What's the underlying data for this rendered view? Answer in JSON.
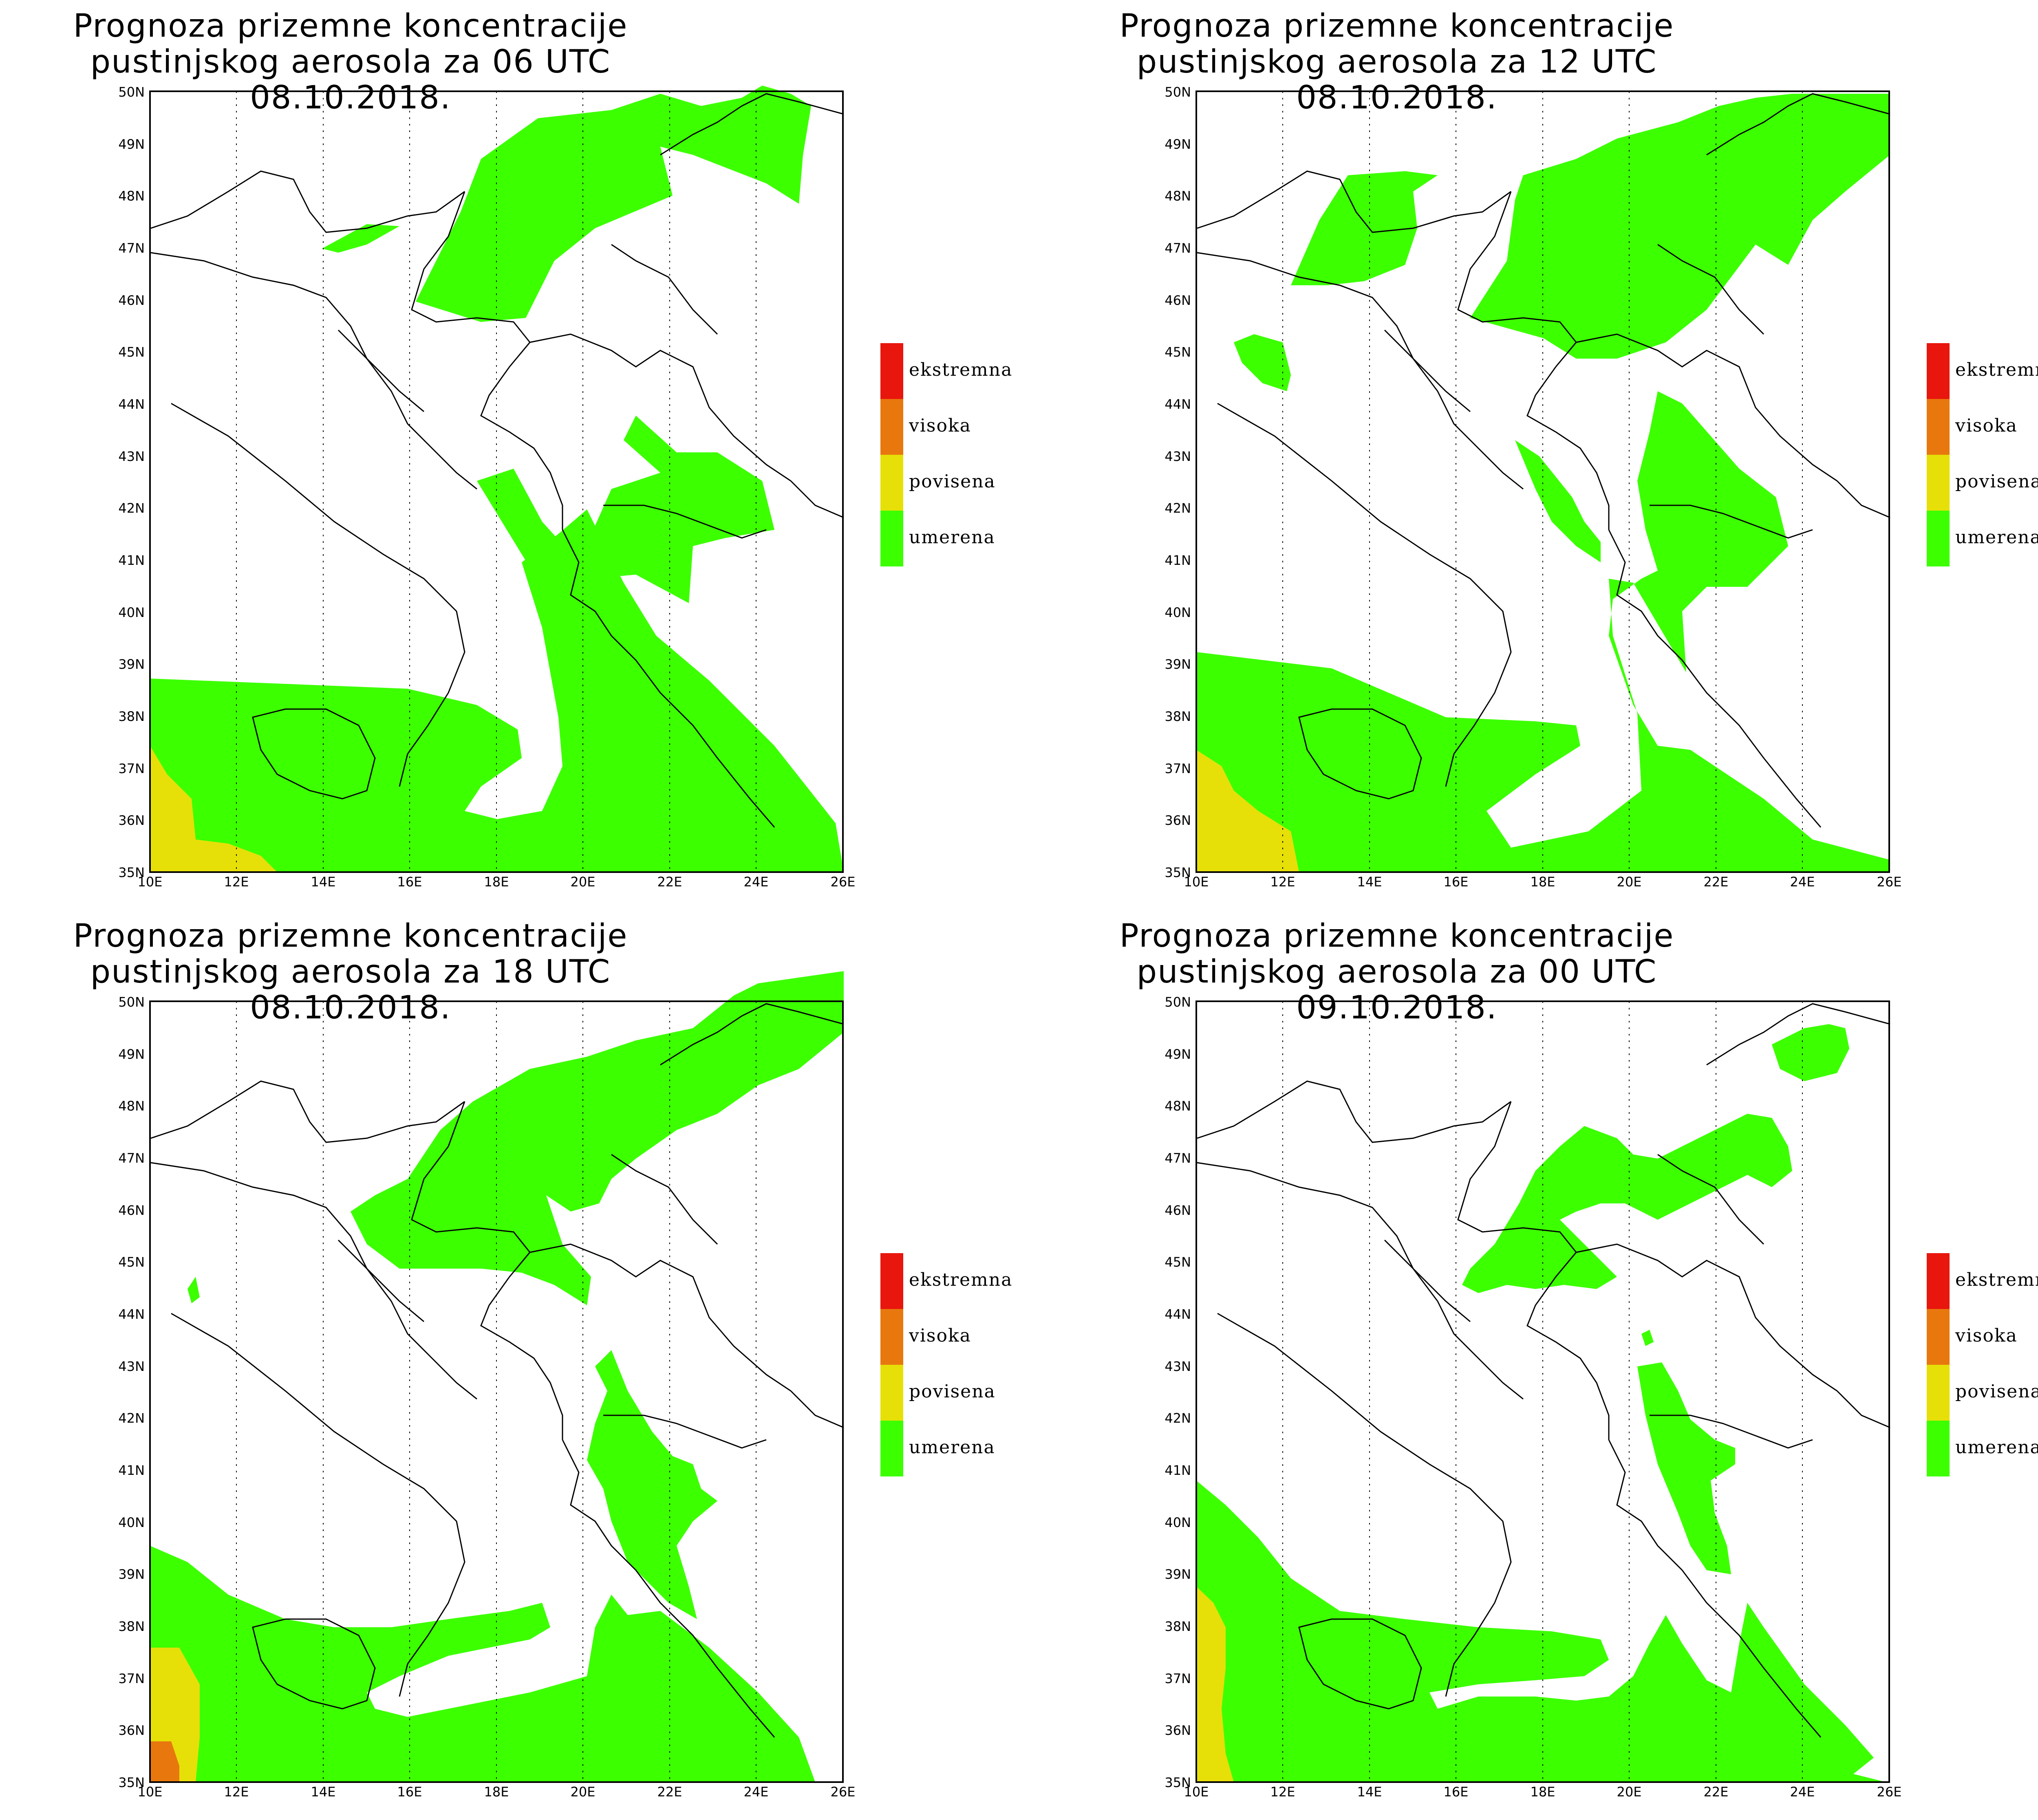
{
  "panels": [
    {
      "title_line1": "Prognoza prizemne koncentracije",
      "title_line2": "pustinjskog aerosola za 06 UTC 08.10.2018."
    },
    {
      "title_line1": "Prognoza prizemne koncentracije",
      "title_line2": "pustinjskog aerosola za 12 UTC 08.10.2018."
    },
    {
      "title_line1": "Prognoza prizemne koncentracije",
      "title_line2": "pustinjskog aerosola za 18 UTC 08.10.2018."
    },
    {
      "title_line1": "Prognoza prizemne koncentracije",
      "title_line2": "pustinjskog aerosola za 00 UTC 09.10.2018."
    }
  ],
  "legend": [
    {
      "label": "ekstremna",
      "color": "#e8160c"
    },
    {
      "label": "visoka",
      "color": "#e8780e"
    },
    {
      "label": "povisena",
      "color": "#e6e008"
    },
    {
      "label": "umerena",
      "color": "#3cff00"
    }
  ],
  "axes": {
    "lon_labels": [
      "10E",
      "12E",
      "14E",
      "16E",
      "18E",
      "20E",
      "22E",
      "24E",
      "26E"
    ],
    "lat_labels": [
      "35N",
      "36N",
      "37N",
      "38N",
      "39N",
      "40N",
      "41N",
      "42N",
      "43N",
      "44N",
      "45N",
      "46N",
      "47N",
      "48N",
      "49N",
      "50N"
    ]
  }
}
